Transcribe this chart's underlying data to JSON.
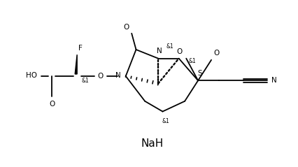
{
  "background_color": "#ffffff",
  "figsize": [
    4.27,
    2.39
  ],
  "dpi": 100,
  "NaH_text": "NaH",
  "line_color": "#000000",
  "line_width": 1.3,
  "font_size_label": 7.5,
  "font_size_small": 5.5,
  "xlim": [
    0,
    10
  ],
  "ylim": [
    0,
    5.6
  ]
}
